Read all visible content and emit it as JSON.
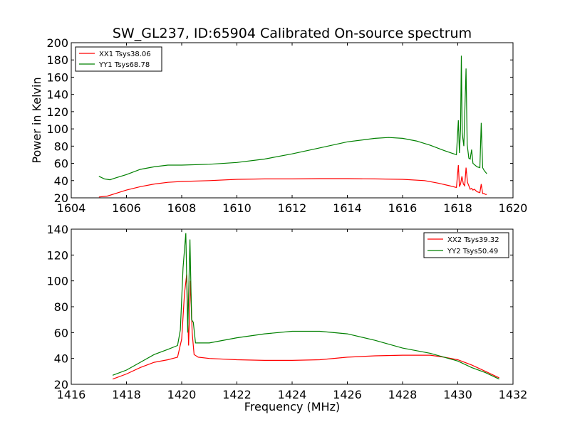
{
  "title": "SW_GL237, ID:65904 Calibrated On-source spectrum",
  "chart_data": [
    {
      "type": "line",
      "ylabel": "Power in Kelvin",
      "xlabel": "",
      "xlim": [
        1604,
        1620
      ],
      "ylim": [
        20,
        200
      ],
      "xticks": [
        1604,
        1606,
        1608,
        1610,
        1612,
        1614,
        1616,
        1618,
        1620
      ],
      "yticks": [
        20,
        40,
        60,
        80,
        100,
        120,
        140,
        160,
        180,
        200
      ],
      "legend_position": "top-left",
      "series": [
        {
          "name": "XX1 Tsys38.06",
          "color": "#ff0000",
          "points": [
            [
              1605.0,
              21
            ],
            [
              1605.3,
              22
            ],
            [
              1605.6,
              25
            ],
            [
              1606.0,
              29
            ],
            [
              1606.5,
              33
            ],
            [
              1607.0,
              36
            ],
            [
              1607.5,
              38
            ],
            [
              1608.0,
              39
            ],
            [
              1609.0,
              40
            ],
            [
              1610.0,
              41.5
            ],
            [
              1611.0,
              42
            ],
            [
              1612.0,
              42
            ],
            [
              1613.0,
              42.3
            ],
            [
              1614.0,
              42.3
            ],
            [
              1615.0,
              42
            ],
            [
              1616.0,
              41.5
            ],
            [
              1616.8,
              40
            ],
            [
              1617.3,
              37
            ],
            [
              1617.7,
              34
            ],
            [
              1617.95,
              32
            ],
            [
              1618.02,
              58
            ],
            [
              1618.06,
              33
            ],
            [
              1618.1,
              36
            ],
            [
              1618.15,
              45
            ],
            [
              1618.2,
              36
            ],
            [
              1618.25,
              34
            ],
            [
              1618.3,
              55
            ],
            [
              1618.35,
              38
            ],
            [
              1618.45,
              30
            ],
            [
              1618.5,
              31
            ],
            [
              1618.55,
              29
            ],
            [
              1618.6,
              30
            ],
            [
              1618.7,
              27
            ],
            [
              1618.8,
              26
            ],
            [
              1618.85,
              36
            ],
            [
              1618.9,
              25
            ],
            [
              1618.95,
              25
            ],
            [
              1619.0,
              24
            ],
            [
              1619.05,
              24
            ]
          ]
        },
        {
          "name": "YY1 Tsys68.78",
          "color": "#008000",
          "points": [
            [
              1605.0,
              45
            ],
            [
              1605.2,
              42
            ],
            [
              1605.4,
              41
            ],
            [
              1605.6,
              43
            ],
            [
              1606.0,
              47
            ],
            [
              1606.5,
              53
            ],
            [
              1607.0,
              56
            ],
            [
              1607.5,
              58
            ],
            [
              1608.0,
              58
            ],
            [
              1609.0,
              59
            ],
            [
              1610.0,
              61
            ],
            [
              1611.0,
              65
            ],
            [
              1612.0,
              71
            ],
            [
              1613.0,
              78
            ],
            [
              1614.0,
              85
            ],
            [
              1615.0,
              89
            ],
            [
              1615.5,
              90
            ],
            [
              1616.0,
              89
            ],
            [
              1616.5,
              86
            ],
            [
              1617.0,
              81
            ],
            [
              1617.5,
              75
            ],
            [
              1617.95,
              70
            ],
            [
              1618.02,
              110
            ],
            [
              1618.06,
              72
            ],
            [
              1618.1,
              100
            ],
            [
              1618.13,
              185
            ],
            [
              1618.16,
              95
            ],
            [
              1618.22,
              80
            ],
            [
              1618.3,
              170
            ],
            [
              1618.34,
              82
            ],
            [
              1618.4,
              66
            ],
            [
              1618.45,
              65
            ],
            [
              1618.5,
              76
            ],
            [
              1618.55,
              60
            ],
            [
              1618.7,
              56
            ],
            [
              1618.8,
              55
            ],
            [
              1618.85,
              107
            ],
            [
              1618.9,
              55
            ],
            [
              1618.95,
              52
            ],
            [
              1619.0,
              50
            ],
            [
              1619.05,
              48
            ]
          ]
        }
      ]
    },
    {
      "type": "line",
      "ylabel": "",
      "xlabel": "Frequency (MHz)",
      "xlim": [
        1416,
        1432
      ],
      "ylim": [
        20,
        140
      ],
      "xticks": [
        1416,
        1418,
        1420,
        1422,
        1424,
        1426,
        1428,
        1430,
        1432
      ],
      "yticks": [
        20,
        40,
        60,
        80,
        100,
        120,
        140
      ],
      "legend_position": "top-right",
      "series": [
        {
          "name": "XX2 Tsys39.32",
          "color": "#ff0000",
          "points": [
            [
              1417.5,
              24
            ],
            [
              1418.0,
              28
            ],
            [
              1418.5,
              33
            ],
            [
              1419.0,
              37
            ],
            [
              1419.5,
              39
            ],
            [
              1419.85,
              41
            ],
            [
              1420.0,
              55
            ],
            [
              1420.1,
              90
            ],
            [
              1420.18,
              105
            ],
            [
              1420.25,
              50
            ],
            [
              1420.32,
              100
            ],
            [
              1420.38,
              60
            ],
            [
              1420.45,
              43
            ],
            [
              1420.6,
              41
            ],
            [
              1421.0,
              40
            ],
            [
              1422.0,
              39
            ],
            [
              1423.0,
              38.5
            ],
            [
              1424.0,
              38.5
            ],
            [
              1425.0,
              39
            ],
            [
              1426.0,
              41
            ],
            [
              1427.0,
              42
            ],
            [
              1428.0,
              42.5
            ],
            [
              1429.0,
              42.5
            ],
            [
              1429.5,
              41
            ],
            [
              1430.0,
              39
            ],
            [
              1430.5,
              35
            ],
            [
              1431.0,
              30
            ],
            [
              1431.5,
              25
            ]
          ]
        },
        {
          "name": "YY2 Tsys50.49",
          "color": "#008000",
          "points": [
            [
              1417.5,
              27
            ],
            [
              1418.0,
              31
            ],
            [
              1418.5,
              37
            ],
            [
              1419.0,
              43
            ],
            [
              1419.5,
              47
            ],
            [
              1419.85,
              50
            ],
            [
              1419.95,
              62
            ],
            [
              1420.05,
              110
            ],
            [
              1420.15,
              137
            ],
            [
              1420.22,
              60
            ],
            [
              1420.3,
              132
            ],
            [
              1420.36,
              70
            ],
            [
              1420.42,
              68
            ],
            [
              1420.5,
              52
            ],
            [
              1421.0,
              52
            ],
            [
              1422.0,
              56
            ],
            [
              1423.0,
              59
            ],
            [
              1424.0,
              61
            ],
            [
              1425.0,
              61
            ],
            [
              1426.0,
              59
            ],
            [
              1427.0,
              54
            ],
            [
              1428.0,
              48
            ],
            [
              1429.0,
              44
            ],
            [
              1430.0,
              38
            ],
            [
              1430.5,
              33
            ],
            [
              1431.0,
              29
            ],
            [
              1431.5,
              24
            ]
          ]
        }
      ]
    }
  ]
}
